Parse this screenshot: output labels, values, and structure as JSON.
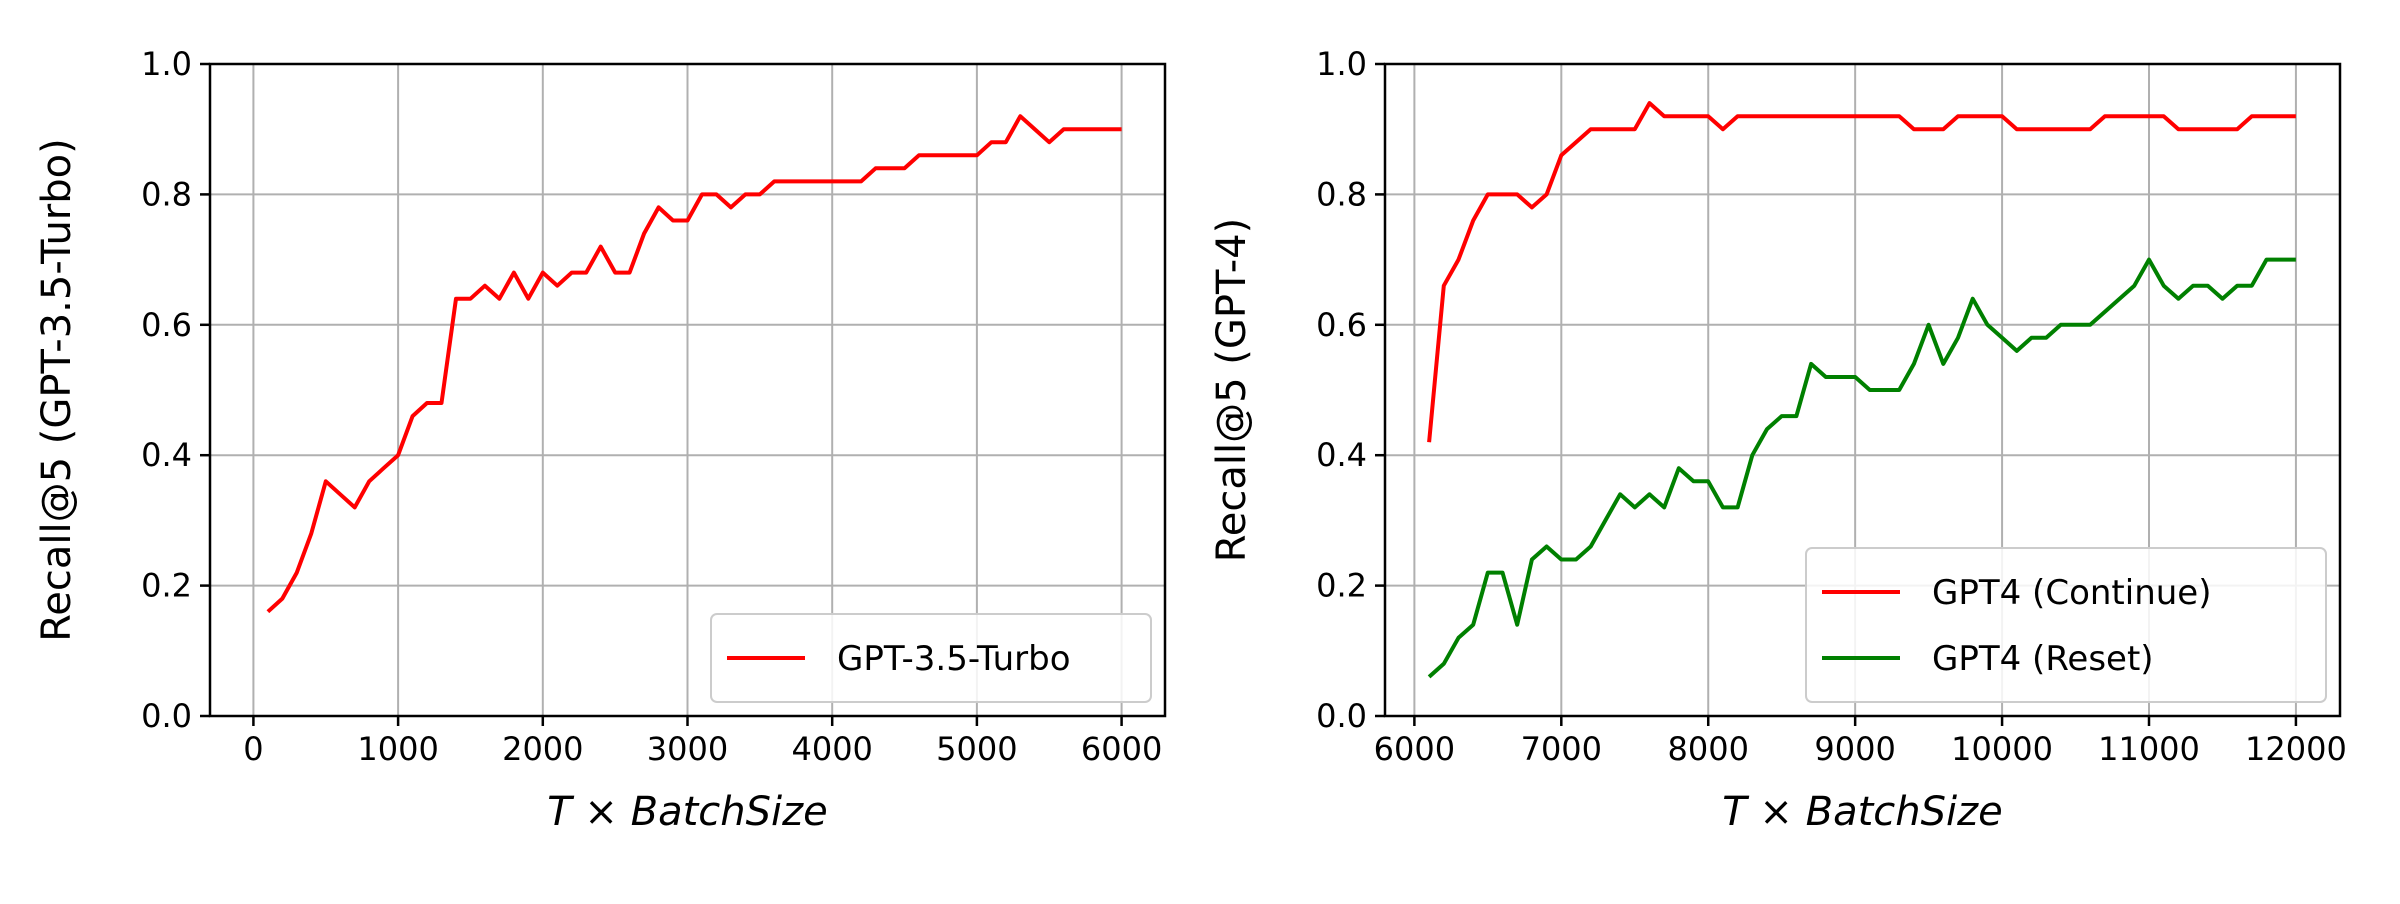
{
  "chart_data": [
    {
      "type": "line",
      "xlabel": "T × BatchSize",
      "ylabel": "Recall@5 (GPT-3.5-Turbo)",
      "xlim": [
        -300,
        6300
      ],
      "ylim": [
        0,
        1
      ],
      "xticks": [
        0,
        1000,
        2000,
        3000,
        4000,
        5000,
        6000
      ],
      "yticks": [
        0.0,
        0.2,
        0.4,
        0.6,
        0.8,
        1.0
      ],
      "xtick_labels": [
        "0",
        "1000",
        "2000",
        "3000",
        "4000",
        "5000",
        "6000"
      ],
      "ytick_labels": [
        "0.0",
        "0.2",
        "0.4",
        "0.6",
        "0.8",
        "1.0"
      ],
      "grid": true,
      "legend_position": "lower-right",
      "series": [
        {
          "name": "GPT-3.5-Turbo",
          "color": "#ff0000",
          "x": [
            100,
            200,
            300,
            400,
            500,
            600,
            700,
            800,
            900,
            1000,
            1100,
            1200,
            1300,
            1400,
            1500,
            1600,
            1700,
            1800,
            1900,
            2000,
            2100,
            2200,
            2300,
            2400,
            2500,
            2600,
            2700,
            2800,
            2900,
            3000,
            3100,
            3200,
            3300,
            3400,
            3500,
            3600,
            3700,
            3800,
            3900,
            4000,
            4100,
            4200,
            4300,
            4400,
            4500,
            4600,
            4700,
            4800,
            4900,
            5000,
            5100,
            5200,
            5300,
            5400,
            5500,
            5600,
            5700,
            5800,
            5900,
            6000
          ],
          "y": [
            0.16,
            0.18,
            0.22,
            0.28,
            0.36,
            0.34,
            0.32,
            0.36,
            0.38,
            0.4,
            0.46,
            0.48,
            0.48,
            0.64,
            0.64,
            0.66,
            0.64,
            0.68,
            0.64,
            0.68,
            0.66,
            0.68,
            0.68,
            0.72,
            0.68,
            0.68,
            0.74,
            0.78,
            0.76,
            0.76,
            0.8,
            0.8,
            0.78,
            0.8,
            0.8,
            0.82,
            0.82,
            0.82,
            0.82,
            0.82,
            0.82,
            0.82,
            0.84,
            0.84,
            0.84,
            0.86,
            0.86,
            0.86,
            0.86,
            0.86,
            0.88,
            0.88,
            0.92,
            0.9,
            0.88,
            0.9,
            0.9,
            0.9,
            0.9,
            0.9
          ]
        }
      ]
    },
    {
      "type": "line",
      "xlabel": "T × BatchSize",
      "ylabel": "Recall@5 (GPT-4)",
      "xlim": [
        5800,
        12300
      ],
      "ylim": [
        0,
        1
      ],
      "xticks": [
        6000,
        7000,
        8000,
        9000,
        10000,
        11000,
        12000
      ],
      "yticks": [
        0.0,
        0.2,
        0.4,
        0.6,
        0.8,
        1.0
      ],
      "xtick_labels": [
        "6000",
        "7000",
        "8000",
        "9000",
        "10000",
        "11000",
        "12000"
      ],
      "ytick_labels": [
        "0.0",
        "0.2",
        "0.4",
        "0.6",
        "0.8",
        "1.0"
      ],
      "grid": true,
      "legend_position": "lower-right",
      "series": [
        {
          "name": "GPT4 (Continue)",
          "color": "#ff0000",
          "x": [
            6100,
            6200,
            6300,
            6400,
            6500,
            6600,
            6700,
            6800,
            6900,
            7000,
            7100,
            7200,
            7300,
            7400,
            7500,
            7600,
            7700,
            7800,
            7900,
            8000,
            8100,
            8200,
            8300,
            8400,
            8500,
            8600,
            8700,
            8800,
            8900,
            9000,
            9100,
            9200,
            9300,
            9400,
            9500,
            9600,
            9700,
            9800,
            9900,
            10000,
            10100,
            10200,
            10300,
            10400,
            10500,
            10600,
            10700,
            10800,
            10900,
            11000,
            11100,
            11200,
            11300,
            11400,
            11500,
            11600,
            11700,
            11800,
            11900,
            12000
          ],
          "y": [
            0.42,
            0.66,
            0.7,
            0.76,
            0.8,
            0.8,
            0.8,
            0.78,
            0.8,
            0.86,
            0.88,
            0.9,
            0.9,
            0.9,
            0.9,
            0.94,
            0.92,
            0.92,
            0.92,
            0.92,
            0.9,
            0.92,
            0.92,
            0.92,
            0.92,
            0.92,
            0.92,
            0.92,
            0.92,
            0.92,
            0.92,
            0.92,
            0.92,
            0.9,
            0.9,
            0.9,
            0.92,
            0.92,
            0.92,
            0.92,
            0.9,
            0.9,
            0.9,
            0.9,
            0.9,
            0.9,
            0.92,
            0.92,
            0.92,
            0.92,
            0.92,
            0.9,
            0.9,
            0.9,
            0.9,
            0.9,
            0.92,
            0.92,
            0.92,
            0.92
          ]
        },
        {
          "name": "GPT4 (Reset)",
          "color": "#008000",
          "x": [
            6100,
            6200,
            6300,
            6400,
            6500,
            6600,
            6700,
            6800,
            6900,
            7000,
            7100,
            7200,
            7300,
            7400,
            7500,
            7600,
            7700,
            7800,
            7900,
            8000,
            8100,
            8200,
            8300,
            8400,
            8500,
            8600,
            8700,
            8800,
            8900,
            9000,
            9100,
            9200,
            9300,
            9400,
            9500,
            9600,
            9700,
            9800,
            9900,
            10000,
            10100,
            10200,
            10300,
            10400,
            10500,
            10600,
            10700,
            10800,
            10900,
            11000,
            11100,
            11200,
            11300,
            11400,
            11500,
            11600,
            11700,
            11800,
            11900,
            12000
          ],
          "y": [
            0.06,
            0.08,
            0.12,
            0.14,
            0.22,
            0.22,
            0.14,
            0.24,
            0.26,
            0.24,
            0.24,
            0.26,
            0.3,
            0.34,
            0.32,
            0.34,
            0.32,
            0.38,
            0.36,
            0.36,
            0.32,
            0.32,
            0.4,
            0.44,
            0.46,
            0.46,
            0.54,
            0.52,
            0.52,
            0.52,
            0.5,
            0.5,
            0.5,
            0.54,
            0.6,
            0.54,
            0.58,
            0.64,
            0.6,
            0.58,
            0.56,
            0.58,
            0.58,
            0.6,
            0.6,
            0.6,
            0.62,
            0.64,
            0.66,
            0.7,
            0.66,
            0.64,
            0.66,
            0.66,
            0.64,
            0.66,
            0.66,
            0.7,
            0.7,
            0.7
          ]
        }
      ]
    }
  ]
}
